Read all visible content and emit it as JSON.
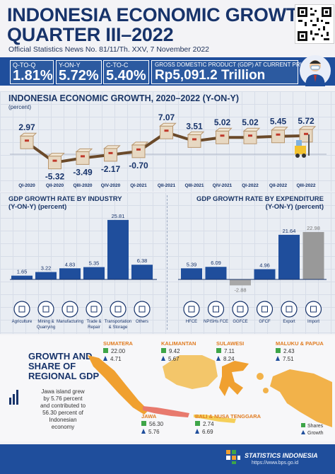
{
  "header": {
    "title_line1": "INDONESIA ECONOMIC GROWTH",
    "title_line2": "QUARTER III–2022",
    "subtitle": "Official Statistics News No. 81/11/Th. XXV, 7 November 2022"
  },
  "stats": {
    "qtoq_label": "Q-TO-Q",
    "qtoq_value": "1.81%",
    "yony_label": "Y-ON-Y",
    "yony_value": "5.72%",
    "ctoc_label": "C-TO-C",
    "ctoc_value": "5.40%",
    "gdp_label": "GROSS DOMESTIC PRODUCT (GDP) AT CURRENT PRICES",
    "gdp_value": "Rp5,091.2 Trillion"
  },
  "growth_section": {
    "title": "INDONESIA ECONOMIC GROWTH, 2020–2022 (Y-ON-Y)",
    "unit": "(percent)"
  },
  "industry_section": {
    "title": "GDP GROWTH RATE BY INDUSTRY",
    "subtitle": "(Y-ON-Y) (percent)"
  },
  "expenditure_section": {
    "title": "GDP GROWTH RATE BY EXPENDITURE",
    "subtitle": "(Y-ON-Y) (percent)"
  },
  "regional": {
    "title_line1": "GROWTH AND",
    "title_line2": "SHARE OF",
    "title_line3": "REGIONAL GDP",
    "java_note": [
      "Jawa island grew",
      "by 5.76 percent",
      "and contributed to",
      "56.30 percent of",
      "Indonesian",
      "economy"
    ],
    "legend_shares": "Shares",
    "legend_growth": "Growth",
    "regions": [
      {
        "name": "SUMATERA",
        "share": "22.00",
        "growth": "4.71"
      },
      {
        "name": "KALIMANTAN",
        "share": "9.42",
        "growth": "5.67"
      },
      {
        "name": "SULAWESI",
        "share": "7.11",
        "growth": "8.24"
      },
      {
        "name": "MALUKU & PAPUA",
        "share": "2.43",
        "growth": "7.51"
      },
      {
        "name": "JAWA",
        "share": "56.30",
        "growth": "5.76"
      },
      {
        "name": "BALI & NUSA TENGGARA",
        "share": "2.74",
        "growth": "6.69"
      }
    ]
  },
  "footer": {
    "org": "STATISTICS INDONESIA",
    "url": "https://www.bps.go.id"
  },
  "colors": {
    "navy": "#17336a",
    "blue": "#1f4e9c",
    "grey": "#999999",
    "green": "#3ea548",
    "orange": "#f0a030"
  },
  "chart_data": [
    {
      "type": "line",
      "categories": [
        "QI-2020",
        "QII-2020",
        "QIII-2020",
        "QIV-2020",
        "QI-2021",
        "QII-2021",
        "QIII-2021",
        "QIV-2021",
        "QI-2022",
        "QII-2022",
        "QIII-2022"
      ],
      "values": [
        2.97,
        -5.32,
        -3.49,
        -2.17,
        -0.7,
        7.07,
        3.51,
        5.02,
        5.02,
        5.45,
        5.72
      ],
      "labels": [
        "2.97",
        "-5.32",
        "-3.49",
        "-2.17",
        "-0.70",
        "7.07",
        "3.51",
        "5.02",
        "5.02",
        "5.45",
        "5.72"
      ],
      "ylim": [
        -6,
        8
      ]
    },
    {
      "type": "bar",
      "categories": [
        "Agriculture",
        "Mining & Quarrying",
        "Manufacturing",
        "Trade & Repair",
        "Transportation & Storage",
        "Others"
      ],
      "values": [
        1.65,
        3.22,
        4.83,
        5.35,
        25.81,
        6.38
      ],
      "labels": [
        "1.65",
        "3.22",
        "4.83",
        "5.35",
        "25.81",
        "6.38"
      ],
      "ylim": [
        0,
        27
      ]
    },
    {
      "type": "bar",
      "categories": [
        "HFCE",
        "NPISHs FCE",
        "GGFCE",
        "GFCF",
        "Export",
        "Import"
      ],
      "values": [
        5.39,
        6.09,
        -2.88,
        4.96,
        21.64,
        22.98
      ],
      "labels": [
        "5.39",
        "6.09",
        "-2.88",
        "4.96",
        "21.64",
        "22.98"
      ],
      "ylim": [
        -3,
        24
      ]
    }
  ]
}
